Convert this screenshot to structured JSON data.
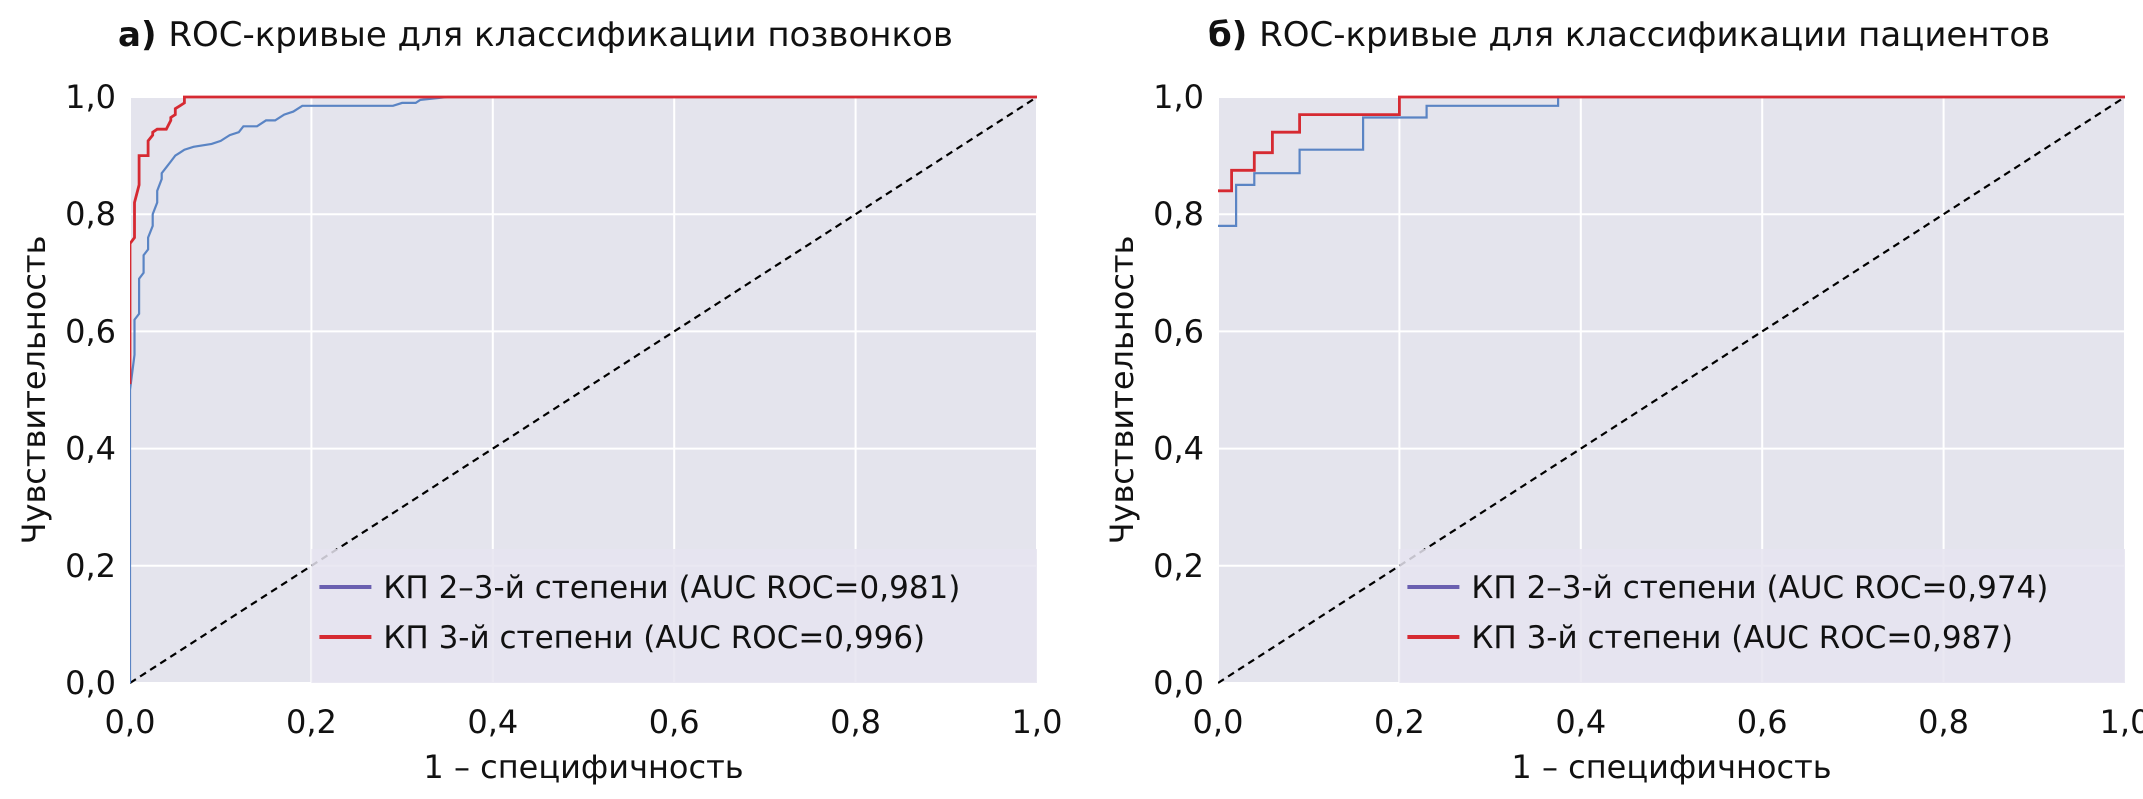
{
  "chart_data": [
    {
      "type": "line",
      "panel_label": "а)",
      "title": "ROC-кривые для классификации позвонков",
      "xlabel": "1 – специфичность",
      "ylabel": "Чувствительность",
      "xlim": [
        0,
        1
      ],
      "ylim": [
        0,
        1
      ],
      "xticks": [
        "0,0",
        "0,2",
        "0,4",
        "0,6",
        "0,8",
        "1,0"
      ],
      "yticks": [
        "0,0",
        "0,2",
        "0,4",
        "0,6",
        "0,8",
        "1,0"
      ],
      "grid": true,
      "legend_position": "lower-right",
      "series": [
        {
          "name": "КП 2–3-й степени (AUC ROC=0,981)",
          "legend_color": "#6a5fb0",
          "line_color": "#5a84c4",
          "points": [
            [
              0,
              0
            ],
            [
              0,
              0.12
            ],
            [
              0,
              0.5
            ],
            [
              0.005,
              0.56
            ],
            [
              0.005,
              0.62
            ],
            [
              0.01,
              0.63
            ],
            [
              0.01,
              0.69
            ],
            [
              0.015,
              0.7
            ],
            [
              0.015,
              0.73
            ],
            [
              0.02,
              0.74
            ],
            [
              0.02,
              0.76
            ],
            [
              0.025,
              0.78
            ],
            [
              0.025,
              0.8
            ],
            [
              0.03,
              0.82
            ],
            [
              0.03,
              0.84
            ],
            [
              0.035,
              0.86
            ],
            [
              0.035,
              0.87
            ],
            [
              0.04,
              0.88
            ],
            [
              0.045,
              0.89
            ],
            [
              0.05,
              0.9
            ],
            [
              0.055,
              0.905
            ],
            [
              0.06,
              0.91
            ],
            [
              0.07,
              0.915
            ],
            [
              0.09,
              0.92
            ],
            [
              0.1,
              0.925
            ],
            [
              0.105,
              0.93
            ],
            [
              0.11,
              0.935
            ],
            [
              0.12,
              0.94
            ],
            [
              0.125,
              0.95
            ],
            [
              0.14,
              0.95
            ],
            [
              0.15,
              0.96
            ],
            [
              0.16,
              0.96
            ],
            [
              0.17,
              0.97
            ],
            [
              0.18,
              0.975
            ],
            [
              0.19,
              0.985
            ],
            [
              0.22,
              0.985
            ],
            [
              0.29,
              0.985
            ],
            [
              0.3,
              0.99
            ],
            [
              0.315,
              0.99
            ],
            [
              0.32,
              0.995
            ],
            [
              0.35,
              1.0
            ],
            [
              1.0,
              1.0
            ]
          ]
        },
        {
          "name": "КП 3-й степени (AUC ROC=0,996)",
          "legend_color": "#d62a32",
          "line_color": "#d62a32",
          "points": [
            [
              0,
              0.51
            ],
            [
              0,
              0.75
            ],
            [
              0.005,
              0.76
            ],
            [
              0.005,
              0.82
            ],
            [
              0.01,
              0.85
            ],
            [
              0.01,
              0.9
            ],
            [
              0.02,
              0.9
            ],
            [
              0.02,
              0.925
            ],
            [
              0.025,
              0.935
            ],
            [
              0.025,
              0.94
            ],
            [
              0.03,
              0.945
            ],
            [
              0.04,
              0.945
            ],
            [
              0.045,
              0.96
            ],
            [
              0.045,
              0.965
            ],
            [
              0.05,
              0.97
            ],
            [
              0.05,
              0.98
            ],
            [
              0.055,
              0.985
            ],
            [
              0.06,
              0.99
            ],
            [
              0.06,
              1.0
            ],
            [
              1.0,
              1.0
            ]
          ]
        }
      ],
      "diagonal": {
        "style": "dashed",
        "color": "#000000"
      }
    },
    {
      "type": "line",
      "panel_label": "б)",
      "title": "ROC-кривые для классификации пациентов",
      "xlabel": "1 – специфичность",
      "ylabel": "Чувствительность",
      "xlim": [
        0,
        1
      ],
      "ylim": [
        0,
        1
      ],
      "xticks": [
        "0,0",
        "0,2",
        "0,4",
        "0,6",
        "0,8",
        "1,0"
      ],
      "yticks": [
        "0,0",
        "0,2",
        "0,4",
        "0,6",
        "0,8",
        "1,0"
      ],
      "grid": true,
      "legend_position": "lower-right",
      "series": [
        {
          "name": "КП 2–3-й степени (AUC ROC=0,974)",
          "legend_color": "#6a5fb0",
          "line_color": "#5a84c4",
          "points": [
            [
              0,
              0.78
            ],
            [
              0.02,
              0.78
            ],
            [
              0.02,
              0.85
            ],
            [
              0.04,
              0.85
            ],
            [
              0.04,
              0.87
            ],
            [
              0.09,
              0.87
            ],
            [
              0.09,
              0.91
            ],
            [
              0.16,
              0.91
            ],
            [
              0.16,
              0.965
            ],
            [
              0.23,
              0.965
            ],
            [
              0.23,
              0.985
            ],
            [
              0.375,
              0.985
            ],
            [
              0.375,
              1.0
            ],
            [
              1.0,
              1.0
            ]
          ]
        },
        {
          "name": "КП 3-й степени (AUC ROC=0,987)",
          "legend_color": "#d62a32",
          "line_color": "#d62a32",
          "points": [
            [
              0,
              0.84
            ],
            [
              0.015,
              0.84
            ],
            [
              0.015,
              0.875
            ],
            [
              0.04,
              0.875
            ],
            [
              0.04,
              0.905
            ],
            [
              0.06,
              0.905
            ],
            [
              0.06,
              0.94
            ],
            [
              0.09,
              0.94
            ],
            [
              0.09,
              0.97
            ],
            [
              0.2,
              0.97
            ],
            [
              0.2,
              1.0
            ],
            [
              1.0,
              1.0
            ]
          ]
        }
      ],
      "diagonal": {
        "style": "dashed",
        "color": "#000000"
      }
    }
  ]
}
